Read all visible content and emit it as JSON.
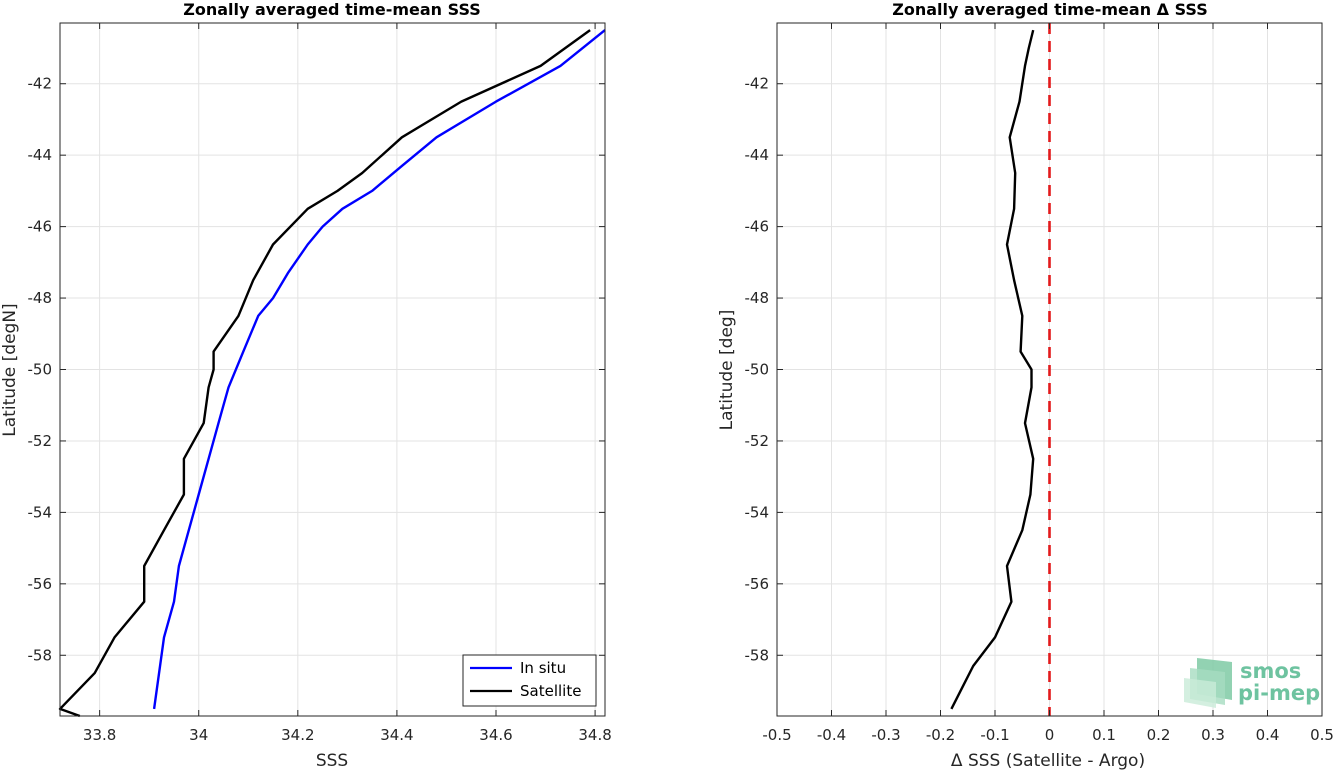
{
  "chart_data": [
    {
      "type": "line",
      "title": "Zonally averaged time-mean SSS",
      "xlabel": "SSS",
      "ylabel": "Latitude [degN]",
      "xlim": [
        33.72,
        34.82
      ],
      "ylim": [
        -59.7,
        -40.3
      ],
      "xticks": [
        33.8,
        34.0,
        34.2,
        34.4,
        34.6,
        34.8
      ],
      "xtick_labels": [
        "33.8",
        "34",
        "34.2",
        "34.4",
        "34.6",
        "34.8"
      ],
      "yticks": [
        -42,
        -44,
        -46,
        -48,
        -50,
        -52,
        -54,
        -56,
        -58
      ],
      "ytick_labels": [
        "-42",
        "-44",
        "-46",
        "-48",
        "-50",
        "-52",
        "-54",
        "-56",
        "-58"
      ],
      "grid": true,
      "legend_position": "bottom-right",
      "series": [
        {
          "name": "In situ",
          "color": "#0000ff",
          "x": [
            33.91,
            33.93,
            33.95,
            33.96,
            33.98,
            34.0,
            34.02,
            34.04,
            34.05,
            34.06,
            34.09,
            34.12,
            34.15,
            34.18,
            34.22,
            34.25,
            34.29,
            34.35,
            34.41,
            34.48,
            34.6,
            34.73,
            34.82
          ],
          "y": [
            -59.5,
            -57.5,
            -56.5,
            -55.5,
            -54.5,
            -53.5,
            -52.5,
            -51.5,
            -51.0,
            -50.5,
            -49.5,
            -48.5,
            -48.0,
            -47.3,
            -46.5,
            -46.0,
            -45.5,
            -45.0,
            -44.3,
            -43.5,
            -42.5,
            -41.5,
            -40.5
          ]
        },
        {
          "name": "Satellite",
          "color": "#000000",
          "x": [
            33.76,
            33.72,
            33.79,
            33.83,
            33.89,
            33.89,
            33.93,
            33.97,
            33.97,
            34.01,
            34.02,
            34.03,
            34.03,
            34.08,
            34.11,
            34.15,
            34.22,
            34.28,
            34.33,
            34.41,
            34.53,
            34.69,
            34.79
          ],
          "y": [
            -59.7,
            -59.5,
            -58.5,
            -57.5,
            -56.5,
            -55.5,
            -54.5,
            -53.5,
            -52.5,
            -51.5,
            -50.5,
            -50.0,
            -49.5,
            -48.5,
            -47.5,
            -46.5,
            -45.5,
            -45.0,
            -44.5,
            -43.5,
            -42.5,
            -41.5,
            -40.5
          ]
        }
      ]
    },
    {
      "type": "line",
      "title": "Zonally averaged time-mean Δ SSS",
      "xlabel": "Δ SSS (Satellite - Argo)",
      "ylabel": "Latitude [deg]",
      "xlim": [
        -0.5,
        0.5
      ],
      "ylim": [
        -59.7,
        -40.3
      ],
      "xticks": [
        -0.5,
        -0.4,
        -0.3,
        -0.2,
        -0.1,
        0.0,
        0.1,
        0.2,
        0.3,
        0.4,
        0.5
      ],
      "xtick_labels": [
        "-0.5",
        "-0.4",
        "-0.3",
        "-0.2",
        "-0.1",
        "0",
        "0.1",
        "0.2",
        "0.3",
        "0.4",
        "0.5"
      ],
      "yticks": [
        -42,
        -44,
        -46,
        -48,
        -50,
        -52,
        -54,
        -56,
        -58
      ],
      "ytick_labels": [
        "-42",
        "-44",
        "-46",
        "-48",
        "-50",
        "-52",
        "-54",
        "-56",
        "-58"
      ],
      "grid": true,
      "series": [
        {
          "color": "#000000",
          "x": [
            -0.18,
            -0.16,
            -0.14,
            -0.1,
            -0.07,
            -0.078,
            -0.05,
            -0.035,
            -0.03,
            -0.045,
            -0.033,
            -0.033,
            -0.053,
            -0.05,
            -0.065,
            -0.078,
            -0.065,
            -0.063,
            -0.073,
            -0.055,
            -0.045,
            -0.038,
            -0.03
          ],
          "y": [
            -59.5,
            -58.9,
            -58.3,
            -57.5,
            -56.5,
            -55.5,
            -54.5,
            -53.5,
            -52.5,
            -51.5,
            -50.5,
            -50.0,
            -49.5,
            -48.5,
            -47.5,
            -46.5,
            -45.5,
            -44.5,
            -43.5,
            -42.5,
            -41.5,
            -41.0,
            -40.5
          ]
        }
      ],
      "reference_line": {
        "x": 0,
        "color": "#e31a1c",
        "style": "dashed"
      }
    }
  ],
  "legend": {
    "items": [
      "In situ",
      "Satellite"
    ]
  },
  "watermark": {
    "line1": "smos",
    "line2": "pi-mep",
    "color": "#6ec3a0"
  }
}
